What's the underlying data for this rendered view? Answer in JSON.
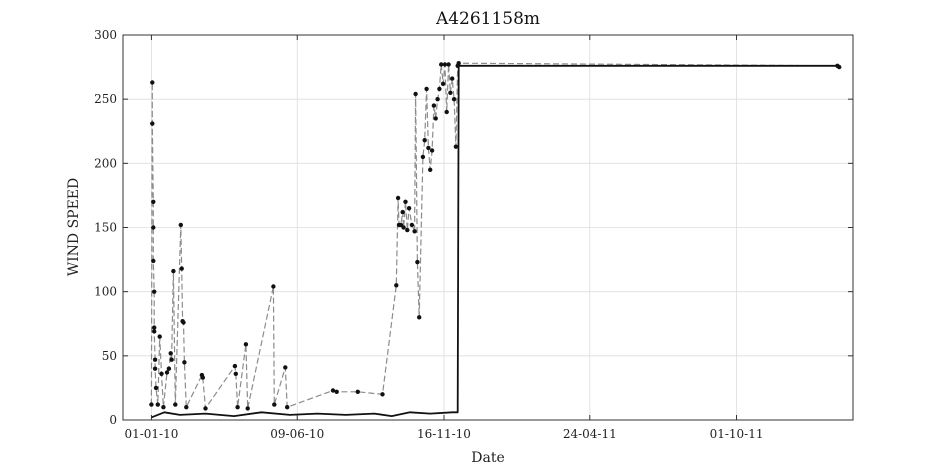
{
  "chart_data": {
    "type": "line",
    "title": "A4261158m",
    "xlabel": "Date",
    "ylabel": "WIND SPEED",
    "ylim": [
      0,
      300
    ],
    "yticks": [
      0,
      50,
      100,
      150,
      200,
      250,
      300
    ],
    "xlim": [
      "2009-12-01",
      "2012-02-05"
    ],
    "xticks": [
      {
        "date": "2010-01-01",
        "label": "01-01-10"
      },
      {
        "date": "2010-06-09",
        "label": "09-06-10"
      },
      {
        "date": "2010-11-16",
        "label": "16-11-10"
      },
      {
        "date": "2011-04-24",
        "label": "24-04-11"
      },
      {
        "date": "2011-10-01",
        "label": "01-10-11"
      }
    ],
    "grid": true,
    "colors": {
      "series_dark": "#111111",
      "series_grey": "#8c8c8c",
      "grid": "#dddddd"
    },
    "series": [
      {
        "style": "grey-dashed",
        "points": [
          [
            "2010-01-01",
            12
          ],
          [
            "2010-01-02",
            263
          ],
          [
            "2010-01-02",
            231
          ],
          [
            "2010-01-03",
            170
          ],
          [
            "2010-01-03",
            150
          ],
          [
            "2010-01-03",
            124
          ],
          [
            "2010-01-04",
            100
          ],
          [
            "2010-01-04",
            72
          ],
          [
            "2010-01-04",
            69
          ],
          [
            "2010-01-05",
            47
          ],
          [
            "2010-01-05",
            40
          ],
          [
            "2010-01-06",
            25
          ],
          [
            "2010-01-08",
            12
          ],
          [
            "2010-01-10",
            65
          ],
          [
            "2010-01-12",
            36
          ],
          [
            "2010-01-14",
            10
          ],
          [
            "2010-01-18",
            37
          ],
          [
            "2010-01-20",
            40
          ],
          [
            "2010-01-22",
            52
          ],
          [
            "2010-01-23",
            47
          ],
          [
            "2010-01-25",
            116
          ],
          [
            "2010-01-27",
            12
          ],
          [
            "2010-02-02",
            152
          ],
          [
            "2010-02-03",
            118
          ],
          [
            "2010-02-04",
            77
          ],
          [
            "2010-02-05",
            76
          ],
          [
            "2010-02-06",
            45
          ],
          [
            "2010-02-08",
            10
          ],
          [
            "2010-02-25",
            35
          ],
          [
            "2010-02-26",
            33
          ],
          [
            "2010-03-01",
            9
          ],
          [
            "2010-04-02",
            42
          ],
          [
            "2010-04-03",
            36
          ],
          [
            "2010-04-05",
            10
          ],
          [
            "2010-04-14",
            59
          ],
          [
            "2010-04-16",
            9
          ],
          [
            "2010-05-14",
            104
          ],
          [
            "2010-05-15",
            12
          ],
          [
            "2010-05-27",
            41
          ],
          [
            "2010-05-29",
            10
          ],
          [
            "2010-07-18",
            23
          ],
          [
            "2010-07-22",
            22
          ],
          [
            "2010-08-14",
            22
          ],
          [
            "2010-09-10",
            20
          ],
          [
            "2010-09-25",
            105
          ],
          [
            "2010-09-27",
            173
          ],
          [
            "2010-09-28",
            152
          ],
          [
            "2010-09-30",
            152
          ],
          [
            "2010-10-02",
            162
          ],
          [
            "2010-10-03",
            150
          ],
          [
            "2010-10-05",
            170
          ],
          [
            "2010-10-07",
            148
          ],
          [
            "2010-10-09",
            165
          ],
          [
            "2010-10-12",
            152
          ],
          [
            "2010-10-15",
            147
          ],
          [
            "2010-10-16",
            254
          ],
          [
            "2010-10-18",
            123
          ],
          [
            "2010-10-20",
            80
          ],
          [
            "2010-10-24",
            205
          ],
          [
            "2010-10-26",
            218
          ],
          [
            "2010-10-28",
            258
          ],
          [
            "2010-10-30",
            212
          ],
          [
            "2010-11-01",
            195
          ],
          [
            "2010-11-03",
            210
          ],
          [
            "2010-11-05",
            245
          ],
          [
            "2010-11-07",
            235
          ],
          [
            "2010-11-09",
            250
          ],
          [
            "2010-11-11",
            258
          ],
          [
            "2010-11-13",
            277
          ],
          [
            "2010-11-15",
            262
          ],
          [
            "2010-11-17",
            277
          ],
          [
            "2010-11-19",
            240
          ],
          [
            "2010-11-21",
            277
          ],
          [
            "2010-11-23",
            255
          ],
          [
            "2010-11-25",
            266
          ],
          [
            "2010-11-27",
            250
          ],
          [
            "2010-11-29",
            213
          ],
          [
            "2010-12-01",
            276
          ],
          [
            "2010-12-02",
            278
          ],
          [
            "2012-01-19",
            276
          ],
          [
            "2012-01-21",
            275
          ]
        ]
      },
      {
        "style": "black-solid",
        "points": [
          [
            "2010-01-01",
            2
          ],
          [
            "2010-01-15",
            6
          ],
          [
            "2010-02-01",
            4
          ],
          [
            "2010-03-01",
            5
          ],
          [
            "2010-04-01",
            3
          ],
          [
            "2010-05-01",
            6
          ],
          [
            "2010-06-01",
            4
          ],
          [
            "2010-07-01",
            5
          ],
          [
            "2010-08-01",
            4
          ],
          [
            "2010-09-01",
            5
          ],
          [
            "2010-09-20",
            3
          ],
          [
            "2010-10-10",
            6
          ],
          [
            "2010-11-01",
            5
          ],
          [
            "2010-11-25",
            6
          ],
          [
            "2010-12-01",
            6
          ],
          [
            "2010-12-02",
            276
          ],
          [
            "2012-01-21",
            276
          ]
        ]
      }
    ]
  }
}
